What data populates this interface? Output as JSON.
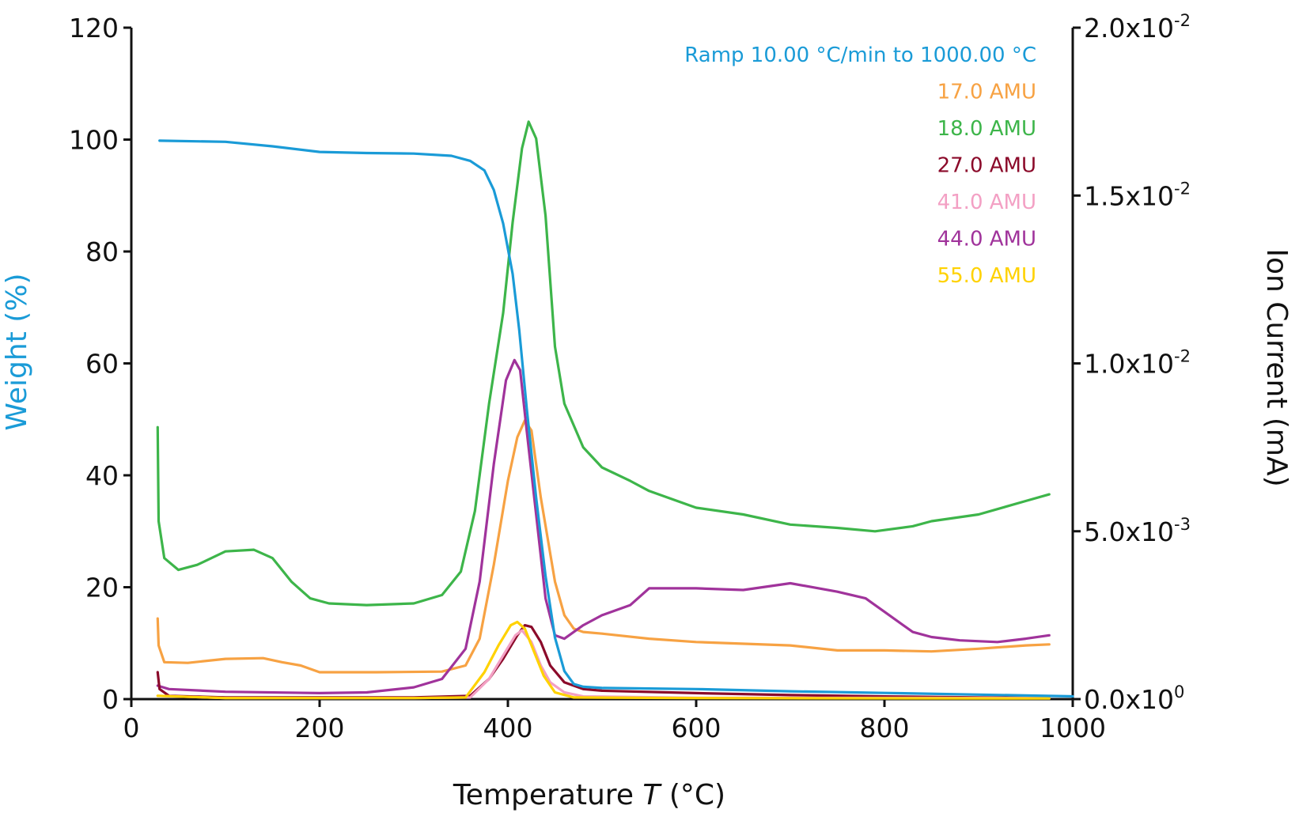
{
  "chart_data": {
    "type": "line",
    "title": "",
    "xlabel": "Temperature T (°C)",
    "xlabel_parts": {
      "before": "Temperature ",
      "italic": "T",
      "after": " (°C)"
    },
    "ylabel_left": "Weight (%)",
    "ylabel_right": "Ion Current (mA)",
    "xlim": [
      0,
      1000
    ],
    "ylim_left": [
      0,
      120
    ],
    "ylim_right": [
      0,
      0.02
    ],
    "x_ticks": [
      "0",
      "200",
      "400",
      "600",
      "800",
      "1000"
    ],
    "y_left_ticks": [
      "0",
      "20",
      "40",
      "60",
      "80",
      "100",
      "120"
    ],
    "y_right_ticks": [
      {
        "mantissa": "0.0x10",
        "exp": "0"
      },
      {
        "mantissa": "5.0x10",
        "exp": "-3"
      },
      {
        "mantissa": "1.0x10",
        "exp": "-2"
      },
      {
        "mantissa": "1.5x10",
        "exp": "-2"
      },
      {
        "mantissa": "2.0x10",
        "exp": "-2"
      }
    ],
    "grid": false,
    "legend_position": "top-right",
    "colors": {
      "weight": "#1a9bd7",
      "amu17": "#f7a243",
      "amu18": "#3db54a",
      "amu27": "#8b0a2a",
      "amu41": "#f3a0c4",
      "amu44": "#a0339b",
      "amu55": "#ffd200",
      "axis": "#111111"
    },
    "series": [
      {
        "name": "Ramp 10.00 °C/min to 1000.00 °C",
        "axis": "left",
        "color": "#1a9bd7",
        "points": [
          [
            30,
            99.8
          ],
          [
            100,
            99.6
          ],
          [
            150,
            98.8
          ],
          [
            200,
            97.8
          ],
          [
            250,
            97.6
          ],
          [
            300,
            97.5
          ],
          [
            340,
            97.1
          ],
          [
            360,
            96.2
          ],
          [
            375,
            94.5
          ],
          [
            385,
            91
          ],
          [
            395,
            85
          ],
          [
            405,
            76
          ],
          [
            412,
            66
          ],
          [
            420,
            52
          ],
          [
            430,
            36
          ],
          [
            440,
            22
          ],
          [
            450,
            11
          ],
          [
            460,
            5
          ],
          [
            470,
            2.7
          ],
          [
            480,
            2.2
          ],
          [
            500,
            2.0
          ],
          [
            600,
            1.8
          ],
          [
            700,
            1.4
          ],
          [
            800,
            1.1
          ],
          [
            900,
            0.8
          ],
          [
            1000,
            0.5
          ]
        ]
      },
      {
        "name": "17.0 AMU",
        "axis": "right",
        "color": "#f7a243",
        "points": [
          [
            28,
            0.0024
          ],
          [
            29,
            0.0016
          ],
          [
            35,
            0.0011
          ],
          [
            60,
            0.00108
          ],
          [
            100,
            0.0012
          ],
          [
            140,
            0.00122
          ],
          [
            160,
            0.0011
          ],
          [
            180,
            0.001
          ],
          [
            200,
            0.0008
          ],
          [
            260,
            0.0008
          ],
          [
            330,
            0.00082
          ],
          [
            355,
            0.001
          ],
          [
            370,
            0.0018
          ],
          [
            385,
            0.004
          ],
          [
            400,
            0.0065
          ],
          [
            410,
            0.0078
          ],
          [
            418,
            0.0083
          ],
          [
            425,
            0.008
          ],
          [
            435,
            0.006
          ],
          [
            450,
            0.0035
          ],
          [
            460,
            0.0025
          ],
          [
            470,
            0.0021
          ],
          [
            480,
            0.002
          ],
          [
            500,
            0.00195
          ],
          [
            550,
            0.0018
          ],
          [
            600,
            0.0017
          ],
          [
            700,
            0.0016
          ],
          [
            750,
            0.00145
          ],
          [
            800,
            0.00145
          ],
          [
            850,
            0.00142
          ],
          [
            900,
            0.0015
          ],
          [
            950,
            0.0016
          ],
          [
            975,
            0.00163
          ]
        ]
      },
      {
        "name": "18.0 AMU",
        "axis": "right",
        "color": "#3db54a",
        "points": [
          [
            28,
            0.0081
          ],
          [
            29,
            0.0053
          ],
          [
            35,
            0.0042
          ],
          [
            50,
            0.00385
          ],
          [
            70,
            0.004
          ],
          [
            100,
            0.0044
          ],
          [
            130,
            0.00445
          ],
          [
            150,
            0.0042
          ],
          [
            170,
            0.0035
          ],
          [
            190,
            0.003
          ],
          [
            210,
            0.00285
          ],
          [
            250,
            0.0028
          ],
          [
            300,
            0.00285
          ],
          [
            330,
            0.0031
          ],
          [
            350,
            0.0038
          ],
          [
            365,
            0.0056
          ],
          [
            380,
            0.0088
          ],
          [
            395,
            0.0115
          ],
          [
            405,
            0.0142
          ],
          [
            415,
            0.0164
          ],
          [
            422,
            0.0172
          ],
          [
            430,
            0.0167
          ],
          [
            440,
            0.0144
          ],
          [
            450,
            0.0105
          ],
          [
            460,
            0.0088
          ],
          [
            480,
            0.0075
          ],
          [
            500,
            0.0069
          ],
          [
            530,
            0.0065
          ],
          [
            550,
            0.0062
          ],
          [
            600,
            0.0057
          ],
          [
            650,
            0.0055
          ],
          [
            700,
            0.0052
          ],
          [
            750,
            0.0051
          ],
          [
            790,
            0.005
          ],
          [
            830,
            0.00515
          ],
          [
            850,
            0.0053
          ],
          [
            900,
            0.0055
          ],
          [
            950,
            0.0059
          ],
          [
            975,
            0.0061
          ]
        ]
      },
      {
        "name": "27.0 AMU",
        "axis": "right",
        "color": "#8b0a2a",
        "points": [
          [
            28,
            0.0008
          ],
          [
            30,
            0.0003
          ],
          [
            40,
            0.0001
          ],
          [
            100,
            5e-05
          ],
          [
            300,
            5e-05
          ],
          [
            360,
            0.0001
          ],
          [
            380,
            0.0006
          ],
          [
            395,
            0.0012
          ],
          [
            410,
            0.0019
          ],
          [
            418,
            0.0022
          ],
          [
            425,
            0.00215
          ],
          [
            435,
            0.0017
          ],
          [
            445,
            0.001
          ],
          [
            460,
            0.0005
          ],
          [
            480,
            0.0003
          ],
          [
            500,
            0.00025
          ],
          [
            600,
            0.00018
          ],
          [
            700,
            0.00012
          ],
          [
            800,
            8e-05
          ],
          [
            900,
            5e-05
          ],
          [
            975,
            4e-05
          ]
        ]
      },
      {
        "name": "41.0 AMU",
        "axis": "right",
        "color": "#f3a0c4",
        "points": [
          [
            28,
            0.0001
          ],
          [
            100,
            3e-05
          ],
          [
            300,
            3e-05
          ],
          [
            360,
            5e-05
          ],
          [
            380,
            0.0006
          ],
          [
            395,
            0.0013
          ],
          [
            408,
            0.0019
          ],
          [
            415,
            0.00205
          ],
          [
            425,
            0.0017
          ],
          [
            435,
            0.001
          ],
          [
            445,
            0.0005
          ],
          [
            460,
            0.0002
          ],
          [
            480,
            8e-05
          ],
          [
            600,
            4e-05
          ],
          [
            975,
            3e-05
          ]
        ]
      },
      {
        "name": "44.0 AMU",
        "axis": "right",
        "color": "#a0339b",
        "points": [
          [
            28,
            0.0004
          ],
          [
            40,
            0.0003
          ],
          [
            100,
            0.00022
          ],
          [
            200,
            0.00018
          ],
          [
            250,
            0.0002
          ],
          [
            300,
            0.00035
          ],
          [
            330,
            0.0006
          ],
          [
            355,
            0.0015
          ],
          [
            370,
            0.0035
          ],
          [
            385,
            0.007
          ],
          [
            398,
            0.0095
          ],
          [
            407,
            0.0101
          ],
          [
            413,
            0.0098
          ],
          [
            420,
            0.008
          ],
          [
            430,
            0.0055
          ],
          [
            440,
            0.003
          ],
          [
            450,
            0.0019
          ],
          [
            460,
            0.0018
          ],
          [
            480,
            0.0022
          ],
          [
            500,
            0.0025
          ],
          [
            530,
            0.0028
          ],
          [
            550,
            0.0033
          ],
          [
            600,
            0.0033
          ],
          [
            650,
            0.00325
          ],
          [
            700,
            0.00345
          ],
          [
            750,
            0.0032
          ],
          [
            780,
            0.003
          ],
          [
            800,
            0.0026
          ],
          [
            830,
            0.002
          ],
          [
            850,
            0.00185
          ],
          [
            880,
            0.00175
          ],
          [
            920,
            0.0017
          ],
          [
            950,
            0.0018
          ],
          [
            975,
            0.0019
          ]
        ]
      },
      {
        "name": "55.0 AMU",
        "axis": "right",
        "color": "#ffd200",
        "points": [
          [
            28,
            0.0001
          ],
          [
            100,
            3e-05
          ],
          [
            300,
            3e-05
          ],
          [
            355,
            5e-05
          ],
          [
            375,
            0.0008
          ],
          [
            390,
            0.0016
          ],
          [
            403,
            0.0022
          ],
          [
            410,
            0.0023
          ],
          [
            418,
            0.0021
          ],
          [
            428,
            0.0014
          ],
          [
            438,
            0.0007
          ],
          [
            450,
            0.0002
          ],
          [
            470,
            5e-05
          ],
          [
            600,
            3e-05
          ],
          [
            975,
            2e-05
          ]
        ]
      }
    ]
  }
}
